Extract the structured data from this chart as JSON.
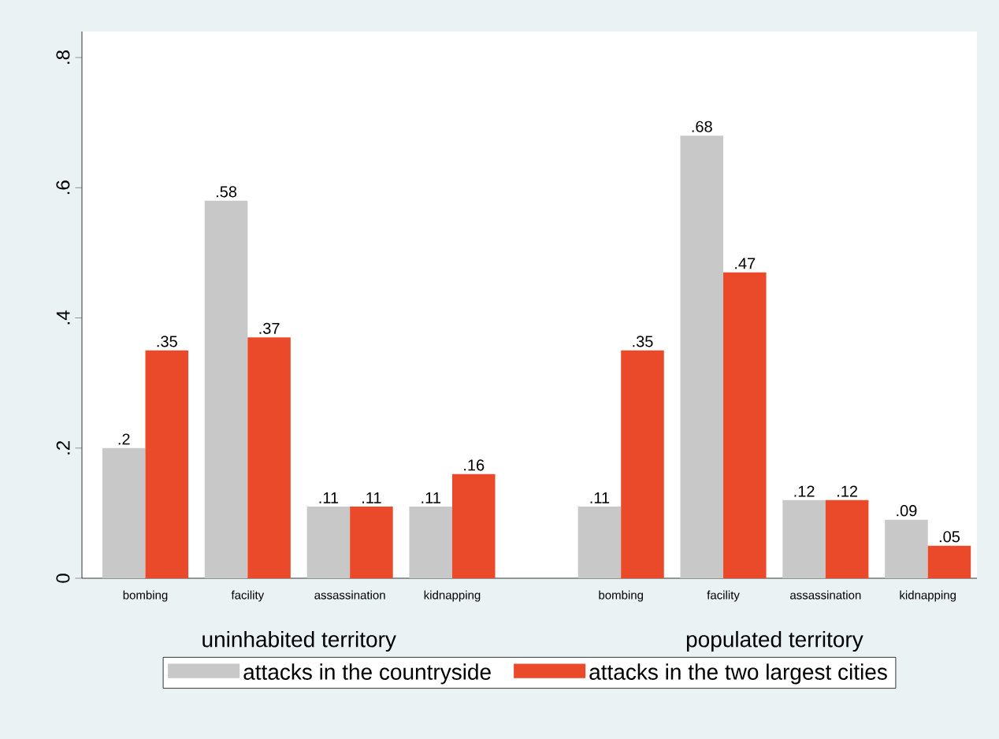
{
  "chart_data": {
    "type": "bar",
    "categories": [
      "bombing",
      "facility",
      "assassination",
      "kidnapping",
      "bombing",
      "facility",
      "assassination",
      "kidnapping"
    ],
    "series": [
      {
        "name": "attacks in the countryside",
        "color": "#c8c8c8",
        "values": [
          0.2,
          0.58,
          0.11,
          0.11,
          0.11,
          0.68,
          0.12,
          0.09
        ],
        "value_labels": [
          ".2",
          ".58",
          ".11",
          ".11",
          ".11",
          ".68",
          ".12",
          ".09"
        ]
      },
      {
        "name": "attacks in the two largest cities",
        "color": "#ea4a2a",
        "values": [
          0.35,
          0.37,
          0.11,
          0.16,
          0.35,
          0.47,
          0.12,
          0.05
        ],
        "value_labels": [
          ".35",
          ".37",
          ".11",
          ".16",
          ".35",
          ".47",
          ".12",
          ".05"
        ]
      }
    ],
    "annotations": [
      "uninhabited territory",
      "populated territory"
    ],
    "ylim": [
      0,
      0.84
    ],
    "yticks": [
      0,
      {
        "value": 0.2,
        "label": ".2"
      },
      {
        "value": 0.4,
        "label": ".4"
      },
      {
        "value": 0.6,
        "label": ".6"
      },
      {
        "value": 0.8,
        "label": ".8"
      }
    ],
    "grid": false,
    "legend": "bottom"
  }
}
